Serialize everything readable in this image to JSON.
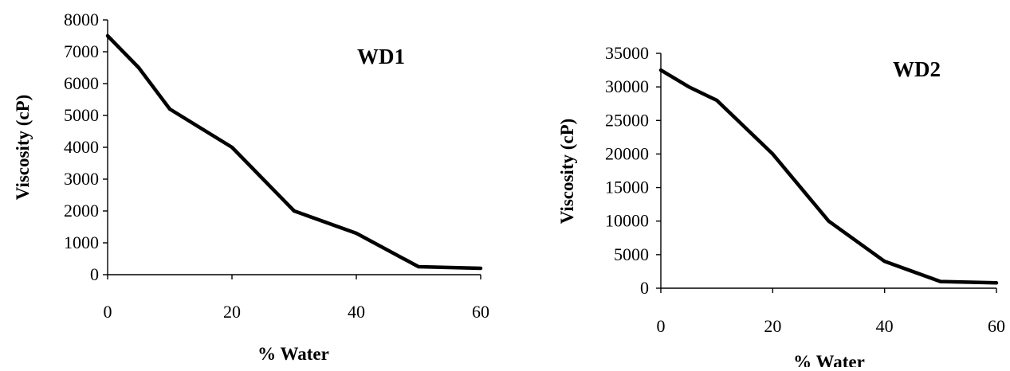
{
  "colors": {
    "line": "#000000",
    "axis": "#000000",
    "background": "#ffffff"
  },
  "chart_data": [
    {
      "type": "line",
      "title": "WD1",
      "xlabel": "% Water",
      "ylabel": "Viscosity (cP)",
      "xlim": [
        0,
        60
      ],
      "ylim": [
        0,
        8000
      ],
      "xticks": [
        "0",
        "20",
        "40",
        "60"
      ],
      "yticks": [
        "0",
        "1000",
        "2000",
        "3000",
        "4000",
        "5000",
        "6000",
        "7000",
        "8000"
      ],
      "grid": false,
      "series": [
        {
          "x": [
            0,
            5,
            10,
            20,
            30,
            40,
            50,
            60
          ],
          "y": [
            7500,
            6500,
            5200,
            4000,
            2000,
            1300,
            250,
            200
          ]
        }
      ]
    },
    {
      "type": "line",
      "title": "WD2",
      "xlabel": "% Water",
      "ylabel": "Viscosity (cP)",
      "xlim": [
        0,
        60
      ],
      "ylim": [
        0,
        35000
      ],
      "xticks": [
        "0",
        "20",
        "40",
        "60"
      ],
      "yticks": [
        "0",
        "5000",
        "10000",
        "15000",
        "20000",
        "25000",
        "30000",
        "35000"
      ],
      "grid": false,
      "series": [
        {
          "x": [
            0,
            5,
            10,
            20,
            30,
            40,
            50,
            60
          ],
          "y": [
            32500,
            30000,
            28000,
            20000,
            10000,
            4000,
            1000,
            800
          ]
        }
      ]
    }
  ]
}
